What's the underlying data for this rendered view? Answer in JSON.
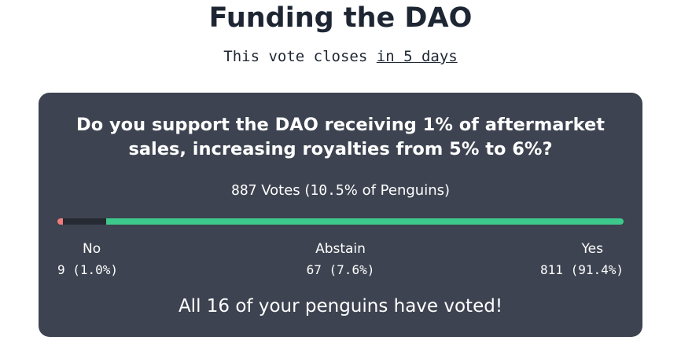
{
  "header": {
    "title": "Funding the DAO",
    "closes_prefix": "This vote closes ",
    "closes_when": "in 5 days"
  },
  "proposal": {
    "question": "Do you support the DAO receiving 1% of aftermarket sales, increasing royalties from 5% to 6%?",
    "votes_total": "887",
    "votes_text": " Votes (",
    "votes_percent": "10.5",
    "votes_suffix": "% of Penguins)",
    "options": [
      {
        "label": "No",
        "count": "9 (1.0%)",
        "fraction": 0.01,
        "color": "#f07c7c"
      },
      {
        "label": "Abstain",
        "count": "67 (7.6%)",
        "fraction": 0.076,
        "color": "#262a32"
      },
      {
        "label": "Yes",
        "count": "811 (91.4%)",
        "fraction": 0.914,
        "color": "#3ec98c"
      }
    ],
    "status": "All 16 of your penguins have voted!"
  }
}
